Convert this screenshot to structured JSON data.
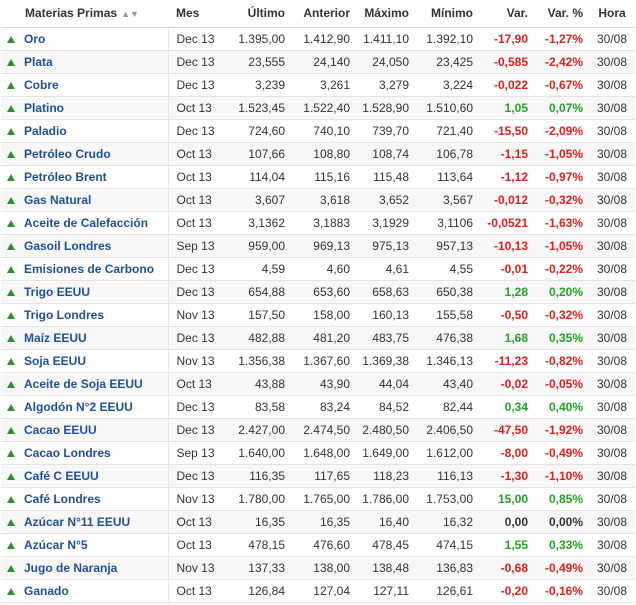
{
  "colors": {
    "link": "#1f4f9a",
    "negative": "#e0201b",
    "positive": "#22a322",
    "arrow_up": "#2f8f2f"
  },
  "header": {
    "name": "Materias Primas",
    "mes": "Mes",
    "ultimo": "Último",
    "anterior": "Anterior",
    "maximo": "Máximo",
    "minimo": "Mínimo",
    "var": "Var.",
    "var_pct": "Var. %",
    "hora": "Hora"
  },
  "rows": [
    {
      "name": "Oro",
      "mes": "Dec 13",
      "ultimo": "1.395,00",
      "anterior": "1.412,90",
      "maximo": "1.411,10",
      "minimo": "1.392,10",
      "var": "-17,90",
      "var_pct": "-1,27%",
      "hora": "30/08",
      "trend": "neg"
    },
    {
      "name": "Plata",
      "mes": "Dec 13",
      "ultimo": "23,555",
      "anterior": "24,140",
      "maximo": "24,050",
      "minimo": "23,425",
      "var": "-0,585",
      "var_pct": "-2,42%",
      "hora": "30/08",
      "trend": "neg"
    },
    {
      "name": "Cobre",
      "mes": "Dec 13",
      "ultimo": "3,239",
      "anterior": "3,261",
      "maximo": "3,279",
      "minimo": "3,224",
      "var": "-0,022",
      "var_pct": "-0,67%",
      "hora": "30/08",
      "trend": "neg"
    },
    {
      "name": "Platino",
      "mes": "Oct 13",
      "ultimo": "1.523,45",
      "anterior": "1.522,40",
      "maximo": "1.528,90",
      "minimo": "1.510,60",
      "var": "1,05",
      "var_pct": "0,07%",
      "hora": "30/08",
      "trend": "pos"
    },
    {
      "name": "Paladio",
      "mes": "Dec 13",
      "ultimo": "724,60",
      "anterior": "740,10",
      "maximo": "739,70",
      "minimo": "721,40",
      "var": "-15,50",
      "var_pct": "-2,09%",
      "hora": "30/08",
      "trend": "neg"
    },
    {
      "name": "Petróleo Crudo",
      "mes": "Oct 13",
      "ultimo": "107,66",
      "anterior": "108,80",
      "maximo": "108,74",
      "minimo": "106,78",
      "var": "-1,15",
      "var_pct": "-1,05%",
      "hora": "30/08",
      "trend": "neg"
    },
    {
      "name": "Petróleo Brent",
      "mes": "Oct 13",
      "ultimo": "114,04",
      "anterior": "115,16",
      "maximo": "115,48",
      "minimo": "113,64",
      "var": "-1,12",
      "var_pct": "-0,97%",
      "hora": "30/08",
      "trend": "neg"
    },
    {
      "name": "Gas Natural",
      "mes": "Oct 13",
      "ultimo": "3,607",
      "anterior": "3,618",
      "maximo": "3,652",
      "minimo": "3,567",
      "var": "-0,012",
      "var_pct": "-0,32%",
      "hora": "30/08",
      "trend": "neg"
    },
    {
      "name": "Aceite de Calefacción",
      "mes": "Oct 13",
      "ultimo": "3,1362",
      "anterior": "3,1883",
      "maximo": "3,1929",
      "minimo": "3,1106",
      "var": "-0,0521",
      "var_pct": "-1,63%",
      "hora": "30/08",
      "trend": "neg"
    },
    {
      "name": "Gasoil Londres",
      "mes": "Sep 13",
      "ultimo": "959,00",
      "anterior": "969,13",
      "maximo": "975,13",
      "minimo": "957,13",
      "var": "-10,13",
      "var_pct": "-1,05%",
      "hora": "30/08",
      "trend": "neg"
    },
    {
      "name": "Emisiones de Carbono",
      "mes": "Dec 13",
      "ultimo": "4,59",
      "anterior": "4,60",
      "maximo": "4,61",
      "minimo": "4,55",
      "var": "-0,01",
      "var_pct": "-0,22%",
      "hora": "30/08",
      "trend": "neg"
    },
    {
      "name": "Trigo EEUU",
      "mes": "Dec 13",
      "ultimo": "654,88",
      "anterior": "653,60",
      "maximo": "658,63",
      "minimo": "650,38",
      "var": "1,28",
      "var_pct": "0,20%",
      "hora": "30/08",
      "trend": "pos"
    },
    {
      "name": "Trigo Londres",
      "mes": "Nov 13",
      "ultimo": "157,50",
      "anterior": "158,00",
      "maximo": "160,13",
      "minimo": "155,58",
      "var": "-0,50",
      "var_pct": "-0,32%",
      "hora": "30/08",
      "trend": "neg"
    },
    {
      "name": "Maíz EEUU",
      "mes": "Dec 13",
      "ultimo": "482,88",
      "anterior": "481,20",
      "maximo": "483,75",
      "minimo": "476,38",
      "var": "1,68",
      "var_pct": "0,35%",
      "hora": "30/08",
      "trend": "pos"
    },
    {
      "name": "Soja EEUU",
      "mes": "Nov 13",
      "ultimo": "1.356,38",
      "anterior": "1.367,60",
      "maximo": "1.369,38",
      "minimo": "1.346,13",
      "var": "-11,23",
      "var_pct": "-0,82%",
      "hora": "30/08",
      "trend": "neg"
    },
    {
      "name": "Aceite de Soja EEUU",
      "mes": "Oct 13",
      "ultimo": "43,88",
      "anterior": "43,90",
      "maximo": "44,04",
      "minimo": "43,40",
      "var": "-0,02",
      "var_pct": "-0,05%",
      "hora": "30/08",
      "trend": "neg"
    },
    {
      "name": "Algodón N°2 EEUU",
      "mes": "Dec 13",
      "ultimo": "83,58",
      "anterior": "83,24",
      "maximo": "84,52",
      "minimo": "82,44",
      "var": "0,34",
      "var_pct": "0,40%",
      "hora": "30/08",
      "trend": "pos"
    },
    {
      "name": "Cacao EEUU",
      "mes": "Dec 13",
      "ultimo": "2.427,00",
      "anterior": "2.474,50",
      "maximo": "2.480,50",
      "minimo": "2.406,50",
      "var": "-47,50",
      "var_pct": "-1,92%",
      "hora": "30/08",
      "trend": "neg"
    },
    {
      "name": "Cacao Londres",
      "mes": "Sep 13",
      "ultimo": "1.640,00",
      "anterior": "1.648,00",
      "maximo": "1.649,00",
      "minimo": "1.612,00",
      "var": "-8,00",
      "var_pct": "-0,49%",
      "hora": "30/08",
      "trend": "neg"
    },
    {
      "name": "Café C EEUU",
      "mes": "Dec 13",
      "ultimo": "116,35",
      "anterior": "117,65",
      "maximo": "118,23",
      "minimo": "116,13",
      "var": "-1,30",
      "var_pct": "-1,10%",
      "hora": "30/08",
      "trend": "neg"
    },
    {
      "name": "Café Londres",
      "mes": "Nov 13",
      "ultimo": "1.780,00",
      "anterior": "1.765,00",
      "maximo": "1.786,00",
      "minimo": "1.753,00",
      "var": "15,00",
      "var_pct": "0,85%",
      "hora": "30/08",
      "trend": "pos"
    },
    {
      "name": "Azúcar N°11 EEUU",
      "mes": "Oct 13",
      "ultimo": "16,35",
      "anterior": "16,35",
      "maximo": "16,40",
      "minimo": "16,32",
      "var": "0,00",
      "var_pct": "0,00%",
      "hora": "30/08",
      "trend": "zero"
    },
    {
      "name": "Azúcar N°5",
      "mes": "Oct 13",
      "ultimo": "478,15",
      "anterior": "476,60",
      "maximo": "478,45",
      "minimo": "474,15",
      "var": "1,55",
      "var_pct": "0,33%",
      "hora": "30/08",
      "trend": "pos"
    },
    {
      "name": "Jugo de Naranja",
      "mes": "Nov 13",
      "ultimo": "137,33",
      "anterior": "138,00",
      "maximo": "138,48",
      "minimo": "136,83",
      "var": "-0,68",
      "var_pct": "-0,49%",
      "hora": "30/08",
      "trend": "neg"
    },
    {
      "name": "Ganado",
      "mes": "Oct 13",
      "ultimo": "126,84",
      "anterior": "127,04",
      "maximo": "127,11",
      "minimo": "126,61",
      "var": "-0,20",
      "var_pct": "-0,16%",
      "hora": "30/08",
      "trend": "neg"
    }
  ]
}
